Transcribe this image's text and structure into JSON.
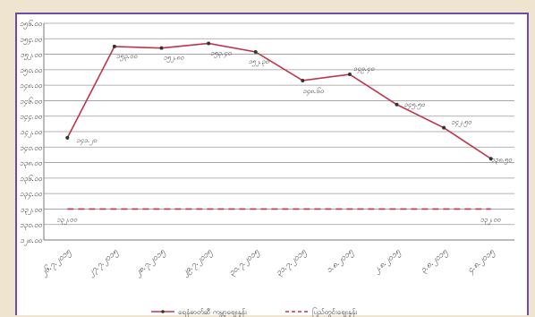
{
  "chart_data": {
    "type": "line",
    "categories": [
      "၂၆.၇.၂၀၁၅",
      "၂၇.၇.၂၀၁၅",
      "၂၈.၇.၂၀၁၅",
      "၂၉.၇.၂၀၁၅",
      "၃၀.၇.၂၀၁၅",
      "၃၁.၇.၂၀၁၅",
      "၁.၈.၂၀၁၅",
      "၂.၈.၂၀၁၅",
      "၃.၈.၂၀၁၅",
      "၄.၈.၂၀၁၅"
    ],
    "y_ticks": [
      {
        "value": 128,
        "label": "၁၂၈.၀၀"
      },
      {
        "value": 130,
        "label": "၁၃၀.၀၀"
      },
      {
        "value": 132,
        "label": "၁၃၂.၀၀"
      },
      {
        "value": 134,
        "label": "၁၃၄.၀၀"
      },
      {
        "value": 136,
        "label": "၁၃၆.၀၀"
      },
      {
        "value": 138,
        "label": "၁၃၈.၀၀"
      },
      {
        "value": 140,
        "label": "၁၄၀.၀၀"
      },
      {
        "value": 142,
        "label": "၁၄၂.၀၀"
      },
      {
        "value": 144,
        "label": "၁၄၄.၀၀"
      },
      {
        "value": 146,
        "label": "၁၄၆.၀၀"
      },
      {
        "value": 148,
        "label": "၁၄၈.၀၀"
      },
      {
        "value": 150,
        "label": "၁၅၀.၀၀"
      },
      {
        "value": 152,
        "label": "၁၅၂.၀၀"
      },
      {
        "value": 154,
        "label": "၁၅၄.၀၀"
      },
      {
        "value": 156,
        "label": "၁၅၆.၀၀"
      }
    ],
    "ylim": [
      128,
      156
    ],
    "grid": true,
    "legend_position": "bottom",
    "series": [
      {
        "name": "ရေနံဓာတ်ဆီ ကမ္ဘာ့ဈေးနှုန်း",
        "color": "#c0344a",
        "style": "solid",
        "values": [
          141.2,
          153.0,
          152.8,
          153.4,
          152.3,
          148.6,
          149.4,
          145.5,
          142.5,
          138.5
        ],
        "labels": [
          "၁၄၁.၂၀",
          "၁၅၃.၀၀",
          "၁၅၂.၈၀",
          "၁၅၃.၄၀",
          "၁၅၂.၃၀",
          "၁၄၈.၆၀",
          "၁၄၉.၄၀",
          "၁၄၅.၅၀",
          "၁၄၂.၅၀",
          "၁၃၈.၅၀"
        ]
      },
      {
        "name": "ပြည်တွင်းဈေးနှုန်း",
        "color": "#c0344a",
        "style": "dashed",
        "values": [
          132,
          132,
          132,
          132,
          132,
          132,
          132,
          132,
          132,
          132
        ],
        "labels": [
          "၁၃၂.၀၀",
          "",
          "",
          "",
          "",
          "",
          "",
          "",
          "",
          "၁၃၂.၀၀"
        ]
      }
    ]
  }
}
